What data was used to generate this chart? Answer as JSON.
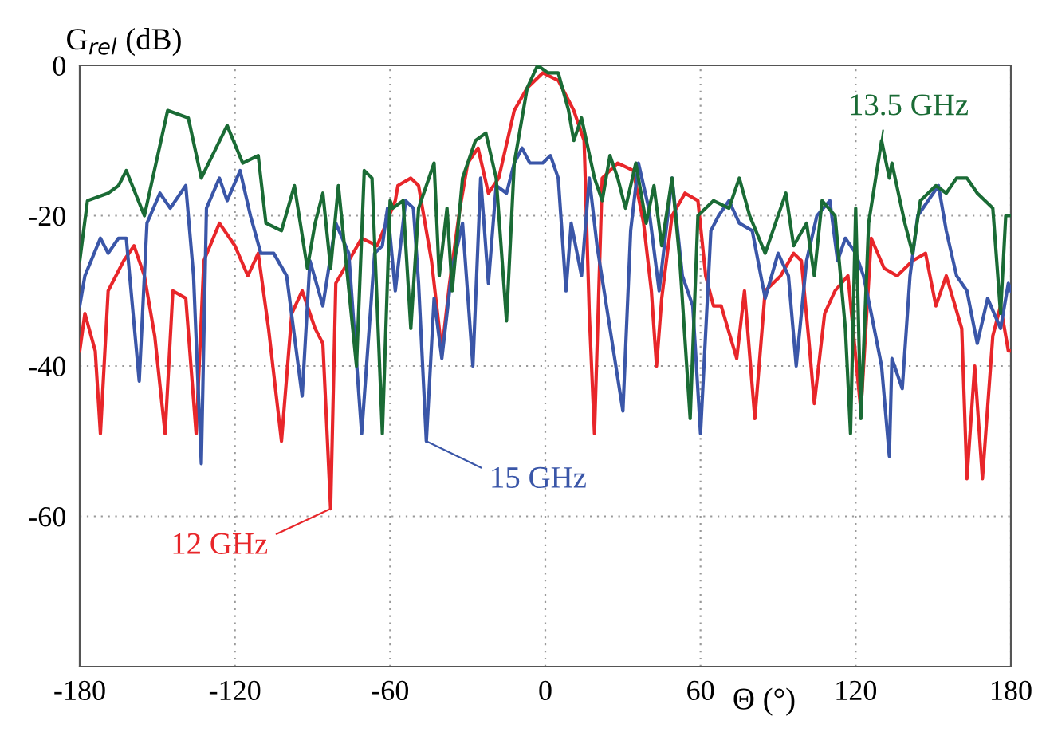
{
  "chart_data": {
    "type": "line",
    "ylabel": "G$_{rel}$ (dB)",
    "xlabel": "Θ (°)",
    "xlim": [
      -180,
      180
    ],
    "xticks": [
      -180,
      -120,
      -60,
      0,
      60,
      120,
      180
    ],
    "ylim": [
      -80,
      0
    ],
    "yticks": [
      -60,
      -40,
      -20,
      0
    ],
    "grid": true,
    "legend": false,
    "marker": "none",
    "line_style": "solid",
    "series": [
      {
        "name": "12 GHz",
        "color": "#e8262a",
        "x": [
          -180,
          -178,
          -174,
          -172,
          -169,
          -163,
          -159,
          -155,
          -151,
          -147,
          -144,
          -139,
          -135,
          -132,
          -126,
          -120,
          -115,
          -111,
          -107,
          -102,
          -98,
          -94,
          -89,
          -86,
          -83,
          -81,
          -76,
          -71,
          -65,
          -58,
          -57,
          -52,
          -49,
          -44,
          -40,
          -37,
          -33,
          -30,
          -26,
          -22,
          -18,
          -12,
          -7,
          -1,
          5,
          11,
          15,
          17,
          19,
          22,
          28,
          34,
          38,
          41,
          43,
          45,
          49,
          54,
          59,
          62,
          65,
          68,
          74,
          77,
          81,
          85,
          91,
          96,
          99,
          102,
          104,
          108,
          112,
          117,
          122,
          126,
          131,
          136,
          142,
          147,
          151,
          155,
          161,
          163,
          166,
          169,
          173,
          176,
          179,
          180
        ],
        "values": [
          -38,
          -33,
          -38,
          -49,
          -30,
          -26,
          -24,
          -28,
          -36,
          -49,
          -30,
          -31,
          -49,
          -26,
          -21,
          -24,
          -28,
          -25,
          -35,
          -50,
          -33,
          -30,
          -35,
          -37,
          -59,
          -29,
          -26,
          -23,
          -24,
          -18,
          -16,
          -15,
          -16,
          -26,
          -38,
          -29,
          -19,
          -13,
          -11,
          -17,
          -15,
          -6,
          -3,
          -1,
          -2,
          -6,
          -10,
          -33,
          -49,
          -15,
          -13,
          -14,
          -21,
          -30,
          -40,
          -31,
          -20,
          -17,
          -18,
          -28,
          -32,
          -32,
          -39,
          -30,
          -47,
          -30,
          -28,
          -25,
          -26,
          -37,
          -45,
          -33,
          -30,
          -28,
          -46,
          -23,
          -27,
          -28,
          -26,
          -25,
          -32,
          -28,
          -35,
          -55,
          -40,
          -55,
          -36,
          -32,
          -38,
          -38
        ]
      },
      {
        "name": "15 GHz",
        "color": "#3a56a8",
        "x": [
          -180,
          -178,
          -172,
          -169,
          -165,
          -162,
          -157,
          -154,
          -149,
          -145,
          -139,
          -136,
          -133,
          -131,
          -126,
          -123,
          -118,
          -114,
          -110,
          -105,
          -100,
          -94,
          -91,
          -86,
          -81,
          -76,
          -71,
          -66,
          -63,
          -61,
          -58,
          -54,
          -51,
          -49,
          -46,
          -43,
          -40,
          -36,
          -32,
          -28,
          -25,
          -22,
          -19,
          -15,
          -12,
          -9,
          -6,
          -1,
          2,
          5,
          8,
          10,
          14,
          17,
          20,
          30,
          33,
          36,
          40,
          44,
          49,
          53,
          57,
          60,
          64,
          67,
          71,
          75,
          80,
          85,
          90,
          94,
          97,
          101,
          105,
          110,
          113,
          116,
          120,
          123,
          126,
          130,
          133,
          134,
          138,
          141,
          144,
          148,
          152,
          155,
          159,
          163,
          167,
          171,
          176,
          179,
          180
        ],
        "values": [
          -32,
          -28,
          -23,
          -25,
          -23,
          -23,
          -42,
          -21,
          -17,
          -19,
          -16,
          -28,
          -53,
          -19,
          -15,
          -18,
          -14,
          -20,
          -25,
          -25,
          -28,
          -44,
          -26,
          -32,
          -21,
          -25,
          -49,
          -25,
          -24,
          -19,
          -30,
          -18,
          -19,
          -29,
          -50,
          -31,
          -39,
          -27,
          -21,
          -40,
          -15,
          -29,
          -16,
          -17,
          -13,
          -11,
          -13,
          -13,
          -12,
          -15,
          -30,
          -21,
          -28,
          -15,
          -24,
          -46,
          -22,
          -13,
          -19,
          -30,
          -15,
          -28,
          -32,
          -49,
          -22,
          -20,
          -18,
          -21,
          -22,
          -31,
          -25,
          -28,
          -40,
          -26,
          -20,
          -18,
          -26,
          -23,
          -25,
          -28,
          -33,
          -40,
          -52,
          -39,
          -43,
          -28,
          -20,
          -18,
          -16,
          -22,
          -28,
          -30,
          -37,
          -31,
          -35,
          -29,
          -30
        ]
      },
      {
        "name": "13.5 GHz",
        "color": "#1a6b35",
        "x": [
          -180,
          -177,
          -169,
          -165,
          -162,
          -155,
          -146,
          -138,
          -133,
          -123,
          -117,
          -111,
          -108,
          -102,
          -97,
          -92,
          -89,
          -86,
          -83,
          -80,
          -73,
          -70,
          -67,
          -63,
          -60,
          -59,
          -55,
          -52,
          -49,
          -43,
          -41,
          -38,
          -36,
          -32,
          -27,
          -23,
          -19,
          -15,
          -12,
          -7,
          -3,
          1,
          5,
          9,
          11,
          14,
          19,
          22,
          25,
          28,
          31,
          35,
          39,
          42,
          45,
          49,
          52,
          56,
          59,
          65,
          71,
          75,
          79,
          85,
          89,
          93,
          96,
          101,
          104,
          107,
          112,
          116,
          118,
          120,
          122,
          125,
          130,
          133,
          134,
          139,
          142,
          145,
          151,
          155,
          159,
          163,
          167,
          173,
          176,
          178,
          180
        ],
        "values": [
          -26,
          -18,
          -17,
          -16,
          -14,
          -20,
          -6,
          -7,
          -15,
          -8,
          -13,
          -12,
          -21,
          -22,
          -16,
          -27,
          -21,
          -17,
          -27,
          -16,
          -40,
          -14,
          -15,
          -49,
          -18,
          -19,
          -18,
          -35,
          -19,
          -13,
          -28,
          -19,
          -30,
          -15,
          -10,
          -9,
          -15,
          -34,
          -13,
          -3,
          0,
          -1,
          -1,
          -6,
          -10,
          -7,
          -15,
          -18,
          -12,
          -15,
          -19,
          -13,
          -21,
          -16,
          -24,
          -15,
          -26,
          -47,
          -20,
          -18,
          -19,
          -15,
          -20,
          -25,
          -21,
          -17,
          -24,
          -21,
          -28,
          -18,
          -20,
          -35,
          -49,
          -19,
          -47,
          -21,
          -10,
          -15,
          -13,
          -21,
          -25,
          -18,
          -16,
          -17,
          -15,
          -15,
          -17,
          -19,
          -33,
          -20,
          -20
        ]
      }
    ]
  }
}
